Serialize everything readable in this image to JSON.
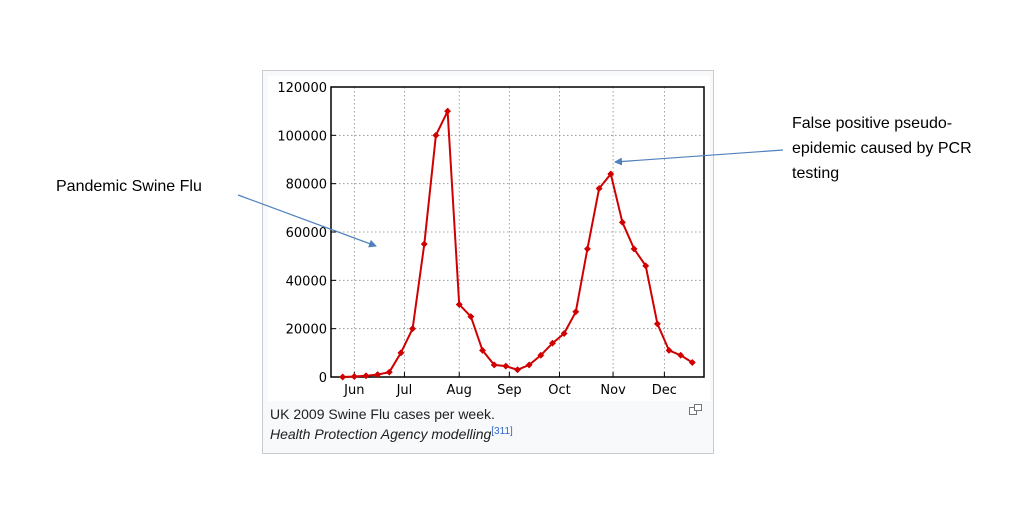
{
  "chart_data": {
    "type": "line",
    "x": [
      1,
      2,
      3,
      4,
      5,
      6,
      7,
      8,
      9,
      10,
      11,
      12,
      13,
      14,
      15,
      16,
      17,
      18,
      19,
      20,
      21,
      22,
      23,
      24,
      25,
      26,
      27,
      28,
      29,
      30,
      31
    ],
    "series": [
      {
        "values": [
          0,
          200,
          500,
          1000,
          2000,
          10000,
          20000,
          55000,
          100000,
          110000,
          30000,
          25000,
          11000,
          5000,
          4500,
          3000,
          5000,
          9000,
          14000,
          18000,
          27000,
          53000,
          78000,
          84000,
          64000,
          53000,
          46000,
          22000,
          11000,
          9000,
          6000
        ]
      }
    ],
    "month_labels": [
      "Jun",
      "Jul",
      "Aug",
      "Sep",
      "Oct",
      "Nov",
      "Dec"
    ],
    "month_positions": [
      2,
      6.3,
      11,
      15.3,
      19.6,
      24.2,
      28.6
    ],
    "y_ticks": [
      0,
      20000,
      40000,
      60000,
      80000,
      100000,
      120000
    ],
    "ylim": [
      0,
      120000
    ],
    "xlim": [
      0,
      32
    ],
    "grid": true,
    "line_color": "#d00000"
  },
  "caption": {
    "line1": "UK 2009 Swine Flu cases per week.",
    "line2": "Health Protection Agency modelling",
    "ref": "[311]"
  },
  "annotations": {
    "left": "Pandemic Swine Flu",
    "right": [
      "False positive pseudo-",
      "epidemic caused by PCR",
      "testing"
    ],
    "arrow_color": "#4f81bd"
  }
}
